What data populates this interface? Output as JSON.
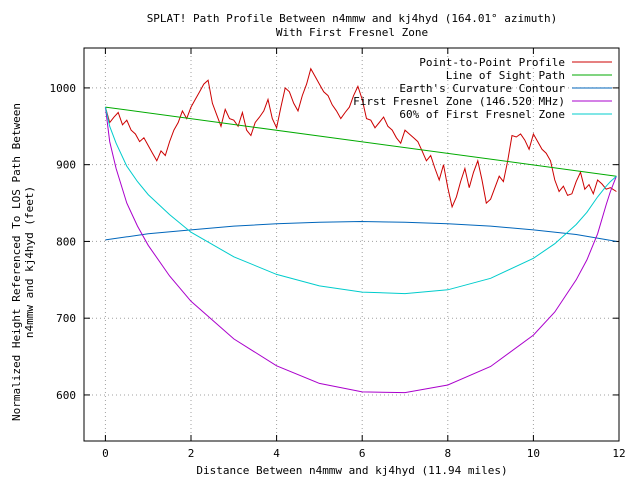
{
  "chart_data": {
    "type": "line",
    "title_line1": "SPLAT! Path Profile Between n4mmw and kj4hyd (164.01° azimuth)",
    "title_line2": "With First Fresnel Zone",
    "xlabel": "Distance Between n4mmw and kj4hyd (11.94 miles)",
    "ylabel_line1": "Normalized Height Referenced To LOS Path Between",
    "ylabel_line2": "n4mmw and kj4hyd (feet)",
    "xlim": [
      -0.5,
      12
    ],
    "ylim": [
      540,
      1052
    ],
    "x_ticks": [
      0,
      2,
      4,
      6,
      8,
      10,
      12
    ],
    "y_ticks": [
      600,
      700,
      800,
      900,
      1000
    ],
    "grid": true,
    "legend_position": "top-right",
    "series": [
      {
        "name": "Point-to-Point Profile",
        "color": "#cc0000",
        "x": [
          0,
          0.1,
          0.2,
          0.3,
          0.4,
          0.5,
          0.6,
          0.7,
          0.8,
          0.9,
          1.0,
          1.1,
          1.2,
          1.3,
          1.4,
          1.5,
          1.6,
          1.7,
          1.8,
          1.9,
          2.0,
          2.1,
          2.2,
          2.3,
          2.4,
          2.5,
          2.6,
          2.7,
          2.8,
          2.9,
          3.0,
          3.1,
          3.2,
          3.3,
          3.4,
          3.5,
          3.6,
          3.7,
          3.8,
          3.9,
          4.0,
          4.1,
          4.2,
          4.3,
          4.4,
          4.5,
          4.6,
          4.7,
          4.8,
          4.9,
          5.0,
          5.1,
          5.2,
          5.3,
          5.4,
          5.5,
          5.6,
          5.7,
          5.8,
          5.9,
          6.0,
          6.1,
          6.2,
          6.3,
          6.4,
          6.5,
          6.6,
          6.7,
          6.8,
          6.9,
          7.0,
          7.1,
          7.2,
          7.3,
          7.4,
          7.5,
          7.6,
          7.7,
          7.8,
          7.9,
          8.0,
          8.1,
          8.2,
          8.3,
          8.4,
          8.5,
          8.6,
          8.7,
          8.8,
          8.9,
          9.0,
          9.1,
          9.2,
          9.3,
          9.4,
          9.5,
          9.6,
          9.7,
          9.8,
          9.9,
          10.0,
          10.1,
          10.2,
          10.3,
          10.4,
          10.5,
          10.6,
          10.7,
          10.8,
          10.9,
          11.0,
          11.1,
          11.2,
          11.3,
          11.4,
          11.5,
          11.6,
          11.7,
          11.8,
          11.94
        ],
        "y": [
          975,
          955,
          962,
          968,
          952,
          958,
          945,
          940,
          930,
          935,
          925,
          915,
          905,
          918,
          912,
          930,
          945,
          955,
          970,
          960,
          975,
          985,
          995,
          1005,
          1010,
          980,
          965,
          950,
          972,
          960,
          958,
          950,
          968,
          945,
          938,
          955,
          962,
          970,
          985,
          960,
          948,
          975,
          1000,
          995,
          980,
          970,
          990,
          1005,
          1025,
          1015,
          1005,
          995,
          990,
          978,
          970,
          960,
          968,
          975,
          990,
          1002,
          985,
          960,
          958,
          948,
          955,
          962,
          950,
          945,
          935,
          928,
          945,
          940,
          935,
          930,
          918,
          905,
          912,
          895,
          880,
          900,
          870,
          845,
          858,
          878,
          895,
          870,
          890,
          905,
          880,
          850,
          855,
          870,
          885,
          878,
          905,
          938,
          936,
          940,
          932,
          920,
          940,
          930,
          920,
          915,
          905,
          880,
          865,
          872,
          860,
          862,
          878,
          890,
          868,
          874,
          862,
          880,
          875,
          868,
          870,
          865
        ]
      },
      {
        "name": "Line of Sight Path",
        "color": "#00aa00",
        "x": [
          0,
          11.94
        ],
        "y": [
          975,
          885
        ]
      },
      {
        "name": "Earth's Curvature Contour",
        "color": "#0066bb",
        "x": [
          0,
          1,
          2,
          3,
          4,
          5,
          5.97,
          7,
          8,
          9,
          10,
          11,
          11.94
        ],
        "y": [
          802,
          810,
          815,
          820,
          823,
          825,
          826,
          825,
          823,
          820,
          815,
          809,
          800
        ]
      },
      {
        "name": "First Fresnel Zone (146.520 MHz)",
        "color": "#aa00cc",
        "x": [
          0,
          0.1,
          0.25,
          0.5,
          0.75,
          1,
          1.5,
          2,
          3,
          4,
          5,
          6,
          7,
          8,
          9,
          10,
          10.5,
          11,
          11.25,
          11.5,
          11.7,
          11.8,
          11.94
        ],
        "y": [
          975,
          930,
          895,
          850,
          820,
          795,
          755,
          722,
          673,
          638,
          615,
          604,
          603,
          613,
          637,
          678,
          708,
          750,
          776,
          810,
          848,
          865,
          885
        ]
      },
      {
        "name": "60% of First Fresnel Zone",
        "color": "#00cccc",
        "x": [
          0,
          0.1,
          0.25,
          0.5,
          0.75,
          1,
          1.5,
          2,
          3,
          4,
          5,
          6,
          7,
          8,
          9,
          10,
          10.5,
          11,
          11.25,
          11.5,
          11.7,
          11.8,
          11.94
        ],
        "y": [
          975,
          950,
          928,
          898,
          878,
          861,
          835,
          812,
          780,
          757,
          742,
          734,
          732,
          737,
          752,
          778,
          797,
          822,
          838,
          858,
          872,
          878,
          885
        ]
      }
    ]
  }
}
